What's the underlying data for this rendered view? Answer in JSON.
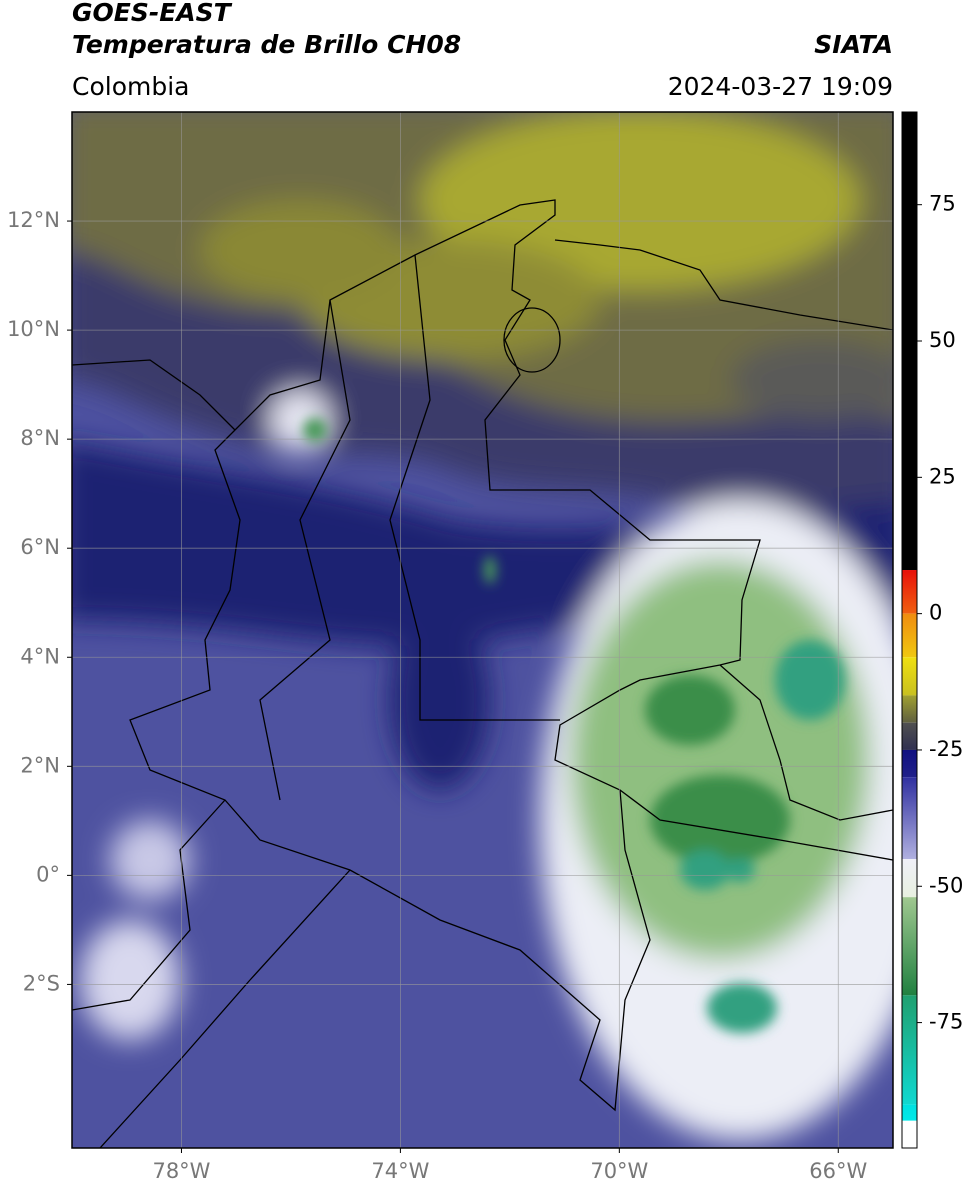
{
  "header": {
    "title": "GOES-EAST",
    "subtitle": "Temperatura de Brillo CH08",
    "source": "SIATA",
    "region": "Colombia",
    "timestamp": "2024-03-27 19:09"
  },
  "map": {
    "xlim": [
      -80,
      -65
    ],
    "ylim": [
      -5,
      14
    ],
    "xticks": [
      {
        "value": -78,
        "label": "78°W"
      },
      {
        "value": -74,
        "label": "74°W"
      },
      {
        "value": -70,
        "label": "70°W"
      },
      {
        "value": -66,
        "label": "66°W"
      }
    ],
    "yticks": [
      {
        "value": 12,
        "label": "12°N"
      },
      {
        "value": 10,
        "label": "10°N"
      },
      {
        "value": 8,
        "label": "8°N"
      },
      {
        "value": 6,
        "label": "6°N"
      },
      {
        "value": 4,
        "label": "4°N"
      },
      {
        "value": 2,
        "label": "2°N"
      },
      {
        "value": 0,
        "label": "0°"
      },
      {
        "value": -2,
        "label": "2°S"
      }
    ],
    "grid": true
  },
  "colorbar": {
    "lim": [
      -98,
      92
    ],
    "ticks": [
      75,
      50,
      25,
      0,
      -25,
      -50,
      -75
    ],
    "segments": [
      {
        "from": 8,
        "to": 92,
        "colors": [
          "#000000",
          "#000000"
        ]
      },
      {
        "from": 0,
        "to": 8,
        "colors": [
          "#e8100a",
          "#f06010"
        ]
      },
      {
        "from": -8,
        "to": 0,
        "colors": [
          "#f08c10",
          "#f0c810"
        ]
      },
      {
        "from": -15,
        "to": -8,
        "colors": [
          "#f0e010",
          "#c8c020"
        ]
      },
      {
        "from": -20,
        "to": -15,
        "colors": [
          "#a0a030",
          "#606040"
        ]
      },
      {
        "from": -25,
        "to": -20,
        "colors": [
          "#505050",
          "#303050"
        ]
      },
      {
        "from": -30,
        "to": -25,
        "colors": [
          "#101080",
          "#20208a"
        ]
      },
      {
        "from": -45,
        "to": -30,
        "colors": [
          "#3030a0",
          "#b0b0e0"
        ]
      },
      {
        "from": -52,
        "to": -45,
        "colors": [
          "#f0f0f8",
          "#e8f0e0"
        ]
      },
      {
        "from": -70,
        "to": -52,
        "colors": [
          "#a0c890",
          "#208040"
        ]
      },
      {
        "from": -90,
        "to": -70,
        "colors": [
          "#20a070",
          "#10d8d0"
        ]
      },
      {
        "from": -93,
        "to": -90,
        "colors": [
          "#00e0e0",
          "#00e8e8"
        ]
      },
      {
        "from": -98,
        "to": -93,
        "colors": [
          "#ffffff",
          "#ffffff"
        ]
      }
    ]
  }
}
